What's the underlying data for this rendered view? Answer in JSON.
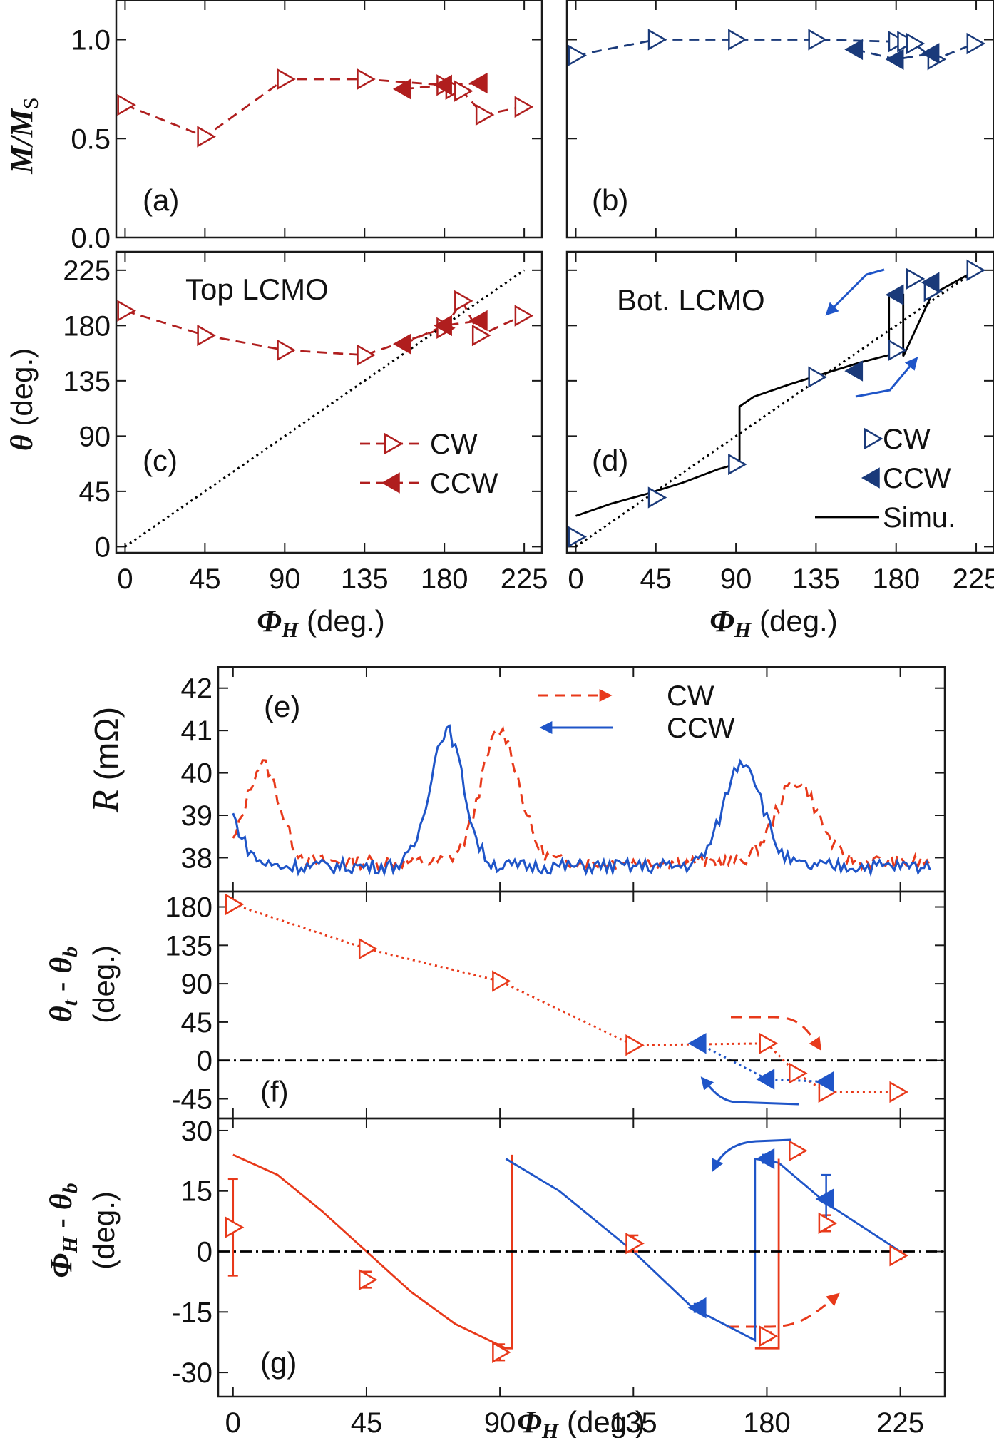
{
  "chart_data": [
    {
      "id": "a",
      "type": "scatter",
      "panel_label": "(a)",
      "annotation": "",
      "ylabel": "M/M_S",
      "xlabel": "",
      "xlim": [
        -5,
        235
      ],
      "ylim": [
        0,
        1.2
      ],
      "yticks": [
        0.0,
        0.5,
        1.0
      ],
      "xticks": [],
      "color": "#b01e1e",
      "series": [
        {
          "marker": "cw",
          "style": "dashed",
          "x": [
            0,
            45,
            90,
            135,
            180,
            185,
            190,
            202,
            224
          ],
          "y": [
            0.67,
            0.51,
            0.8,
            0.8,
            0.77,
            0.75,
            0.74,
            0.62,
            0.66
          ]
        },
        {
          "marker": "ccw",
          "style": "dashed",
          "x": [
            157,
            180,
            200
          ],
          "y": [
            0.75,
            0.77,
            0.78
          ]
        }
      ]
    },
    {
      "id": "b",
      "type": "scatter",
      "panel_label": "(b)",
      "annotation": "",
      "ylabel": "",
      "xlabel": "",
      "xlim": [
        -5,
        235
      ],
      "ylim": [
        0,
        1.2
      ],
      "yticks": [
        0.0,
        0.5,
        1.0
      ],
      "xticks": [],
      "color": "#1a3a7a",
      "series": [
        {
          "marker": "cw",
          "style": "dashed",
          "x": [
            0,
            45,
            90,
            135,
            180,
            185,
            190,
            202,
            224
          ],
          "y": [
            0.92,
            1.0,
            1.0,
            1.0,
            0.99,
            0.99,
            0.98,
            0.9,
            0.98
          ]
        },
        {
          "marker": "ccw",
          "style": "dashed",
          "x": [
            157,
            180,
            200
          ],
          "y": [
            0.95,
            0.9,
            0.93
          ]
        }
      ]
    },
    {
      "id": "c",
      "type": "scatter",
      "panel_label": "(c)",
      "annotation": "Top LCMO",
      "ylabel": "θ (deg.)",
      "xlabel": "Φ_H (deg.)",
      "xlim": [
        -5,
        235
      ],
      "ylim": [
        -5,
        240
      ],
      "yticks": [
        0,
        45,
        90,
        135,
        180,
        225
      ],
      "xticks": [
        0,
        45,
        90,
        135,
        180,
        225
      ],
      "color": "#b01e1e",
      "legend": [
        {
          "label": "CW",
          "marker": "cw"
        },
        {
          "label": "CCW",
          "marker": "ccw"
        }
      ],
      "series": [
        {
          "marker": "cw",
          "style": "dashed",
          "x": [
            0,
            45,
            90,
            135,
            180,
            190,
            200,
            224
          ],
          "y": [
            192,
            172,
            160,
            156,
            178,
            200,
            172,
            188
          ]
        },
        {
          "marker": "ccw",
          "style": "dashed",
          "x": [
            157,
            180,
            200
          ],
          "y": [
            165,
            180,
            184
          ]
        },
        {
          "marker": "none",
          "style": "dotted",
          "color": "#000000",
          "x": [
            0,
            225
          ],
          "y": [
            0,
            225
          ]
        }
      ]
    },
    {
      "id": "d",
      "type": "scatter",
      "panel_label": "(d)",
      "annotation": "Bot. LCMO",
      "ylabel": "",
      "xlabel": "Φ_H (deg.)",
      "xlim": [
        -5,
        235
      ],
      "ylim": [
        -5,
        240
      ],
      "yticks": [
        0,
        45,
        90,
        135,
        180,
        225
      ],
      "xticks": [
        0,
        45,
        90,
        135,
        180,
        225
      ],
      "color": "#1a3a7a",
      "legend": [
        {
          "label": "CW",
          "marker": "cw"
        },
        {
          "label": "CCW",
          "marker": "ccw"
        },
        {
          "label": "Simu.",
          "marker": "line"
        }
      ],
      "series": [
        {
          "marker": "cw",
          "style": "none",
          "x": [
            0,
            45,
            90,
            135,
            180,
            190,
            200,
            224
          ],
          "y": [
            8,
            40,
            67,
            138,
            160,
            218,
            208,
            225
          ]
        },
        {
          "marker": "ccw",
          "style": "none",
          "x": [
            157,
            180,
            200
          ],
          "y": [
            143,
            205,
            215
          ]
        },
        {
          "marker": "none",
          "style": "dotted",
          "color": "#000000",
          "x": [
            0,
            225
          ],
          "y": [
            0,
            225
          ]
        },
        {
          "marker": "none",
          "style": "solid",
          "color": "#000000",
          "x": [
            0,
            20,
            40,
            60,
            80,
            92,
            92,
            100,
            120,
            140,
            160,
            176,
            176,
            184,
            184,
            200,
            225
          ],
          "y": [
            25,
            35,
            43,
            52,
            63,
            68,
            114,
            122,
            132,
            141,
            150,
            156,
            205,
            205,
            155,
            205,
            225
          ]
        }
      ]
    },
    {
      "id": "e",
      "type": "line",
      "panel_label": "(e)",
      "annotation": "",
      "ylabel": "R (mΩ)",
      "xlabel": "",
      "xlim": [
        -5,
        240
      ],
      "ylim": [
        37.2,
        42.5
      ],
      "yticks": [
        38,
        39,
        40,
        41,
        42
      ],
      "xticks": [],
      "legend": [
        {
          "label": "CW",
          "color": "#e8391a",
          "style": "dashed"
        },
        {
          "label": "CCW",
          "color": "#1f55c8",
          "style": "solid"
        }
      ],
      "series": [
        {
          "name": "CW",
          "color": "#e8391a",
          "style": "dashed",
          "pk": [
            [
              10,
              2.3,
              8
            ],
            [
              90,
              3.1,
              9
            ],
            [
              190,
              1.9,
              10
            ]
          ],
          "base": 37.9
        },
        {
          "name": "CCW",
          "color": "#1f55c8",
          "style": "solid",
          "pk": [
            [
              -8,
              2.3,
              10
            ],
            [
              72,
              3.2,
              8
            ],
            [
              172,
              2.5,
              9
            ]
          ],
          "base": 37.8
        }
      ]
    },
    {
      "id": "f",
      "type": "line",
      "panel_label": "(f)",
      "annotation": "",
      "ylabel": "θ_t - θ_b (deg.)",
      "xlabel": "",
      "xlim": [
        -5,
        240
      ],
      "ylim": [
        -68,
        198
      ],
      "yticks": [
        -45,
        0,
        45,
        90,
        135,
        180
      ],
      "xticks": [],
      "series": [
        {
          "color": "#e8391a",
          "marker": "cw",
          "style": "dotted",
          "x": [
            0,
            45,
            90,
            135,
            180,
            190,
            200,
            224
          ],
          "y": [
            183,
            131,
            93,
            18,
            20,
            -15,
            -37,
            -37
          ]
        },
        {
          "color": "#1f55c8",
          "marker": "ccw",
          "style": "dotted",
          "x": [
            157,
            180,
            200
          ],
          "y": [
            20,
            -22,
            -25
          ]
        },
        {
          "color": "#000000",
          "style": "dashdot",
          "x": [
            -5,
            240
          ],
          "y": [
            0,
            0
          ]
        }
      ]
    },
    {
      "id": "g",
      "type": "line",
      "panel_label": "(g)",
      "annotation": "",
      "ylabel": "Φ_H - θ_b (deg.)",
      "xlabel": "Φ_H (deg.)",
      "xlim": [
        -5,
        240
      ],
      "ylim": [
        -36,
        33
      ],
      "yticks": [
        -30,
        -15,
        0,
        15,
        30
      ],
      "xticks": [
        0,
        45,
        90,
        135,
        180,
        225
      ],
      "series": [
        {
          "color": "#e8391a",
          "style": "solid",
          "x": [
            0,
            15,
            30,
            45,
            60,
            75,
            92,
            94,
            94
          ],
          "y": [
            24,
            19,
            10,
            0,
            -10,
            -18,
            -24,
            -24,
            24
          ]
        },
        {
          "color": "#1f55c8",
          "style": "solid",
          "x": [
            92,
            110,
            135,
            155,
            176,
            176,
            184,
            200,
            225
          ],
          "y": [
            23,
            15,
            0,
            -14,
            -22,
            23,
            22,
            12,
            0
          ]
        },
        {
          "color": "#e8391a",
          "style": "solid",
          "x": [
            176,
            184,
            184
          ],
          "y": [
            -24,
            -24,
            23
          ]
        },
        {
          "color": "#e8391a",
          "marker": "cw",
          "style": "none",
          "x": [
            0,
            45,
            90,
            135,
            180,
            190,
            200,
            224
          ],
          "y": [
            6,
            -7,
            -25,
            2,
            -21,
            25,
            7,
            -1
          ],
          "err": [
            12,
            2,
            2,
            2,
            1,
            1,
            2,
            1
          ]
        },
        {
          "color": "#1f55c8",
          "marker": "ccw",
          "style": "none",
          "x": [
            157,
            180,
            200
          ],
          "y": [
            -14,
            23,
            13
          ],
          "err": [
            1,
            1,
            6
          ]
        },
        {
          "color": "#000000",
          "style": "dashdot",
          "x": [
            -5,
            240
          ],
          "y": [
            0,
            0
          ]
        }
      ]
    }
  ]
}
